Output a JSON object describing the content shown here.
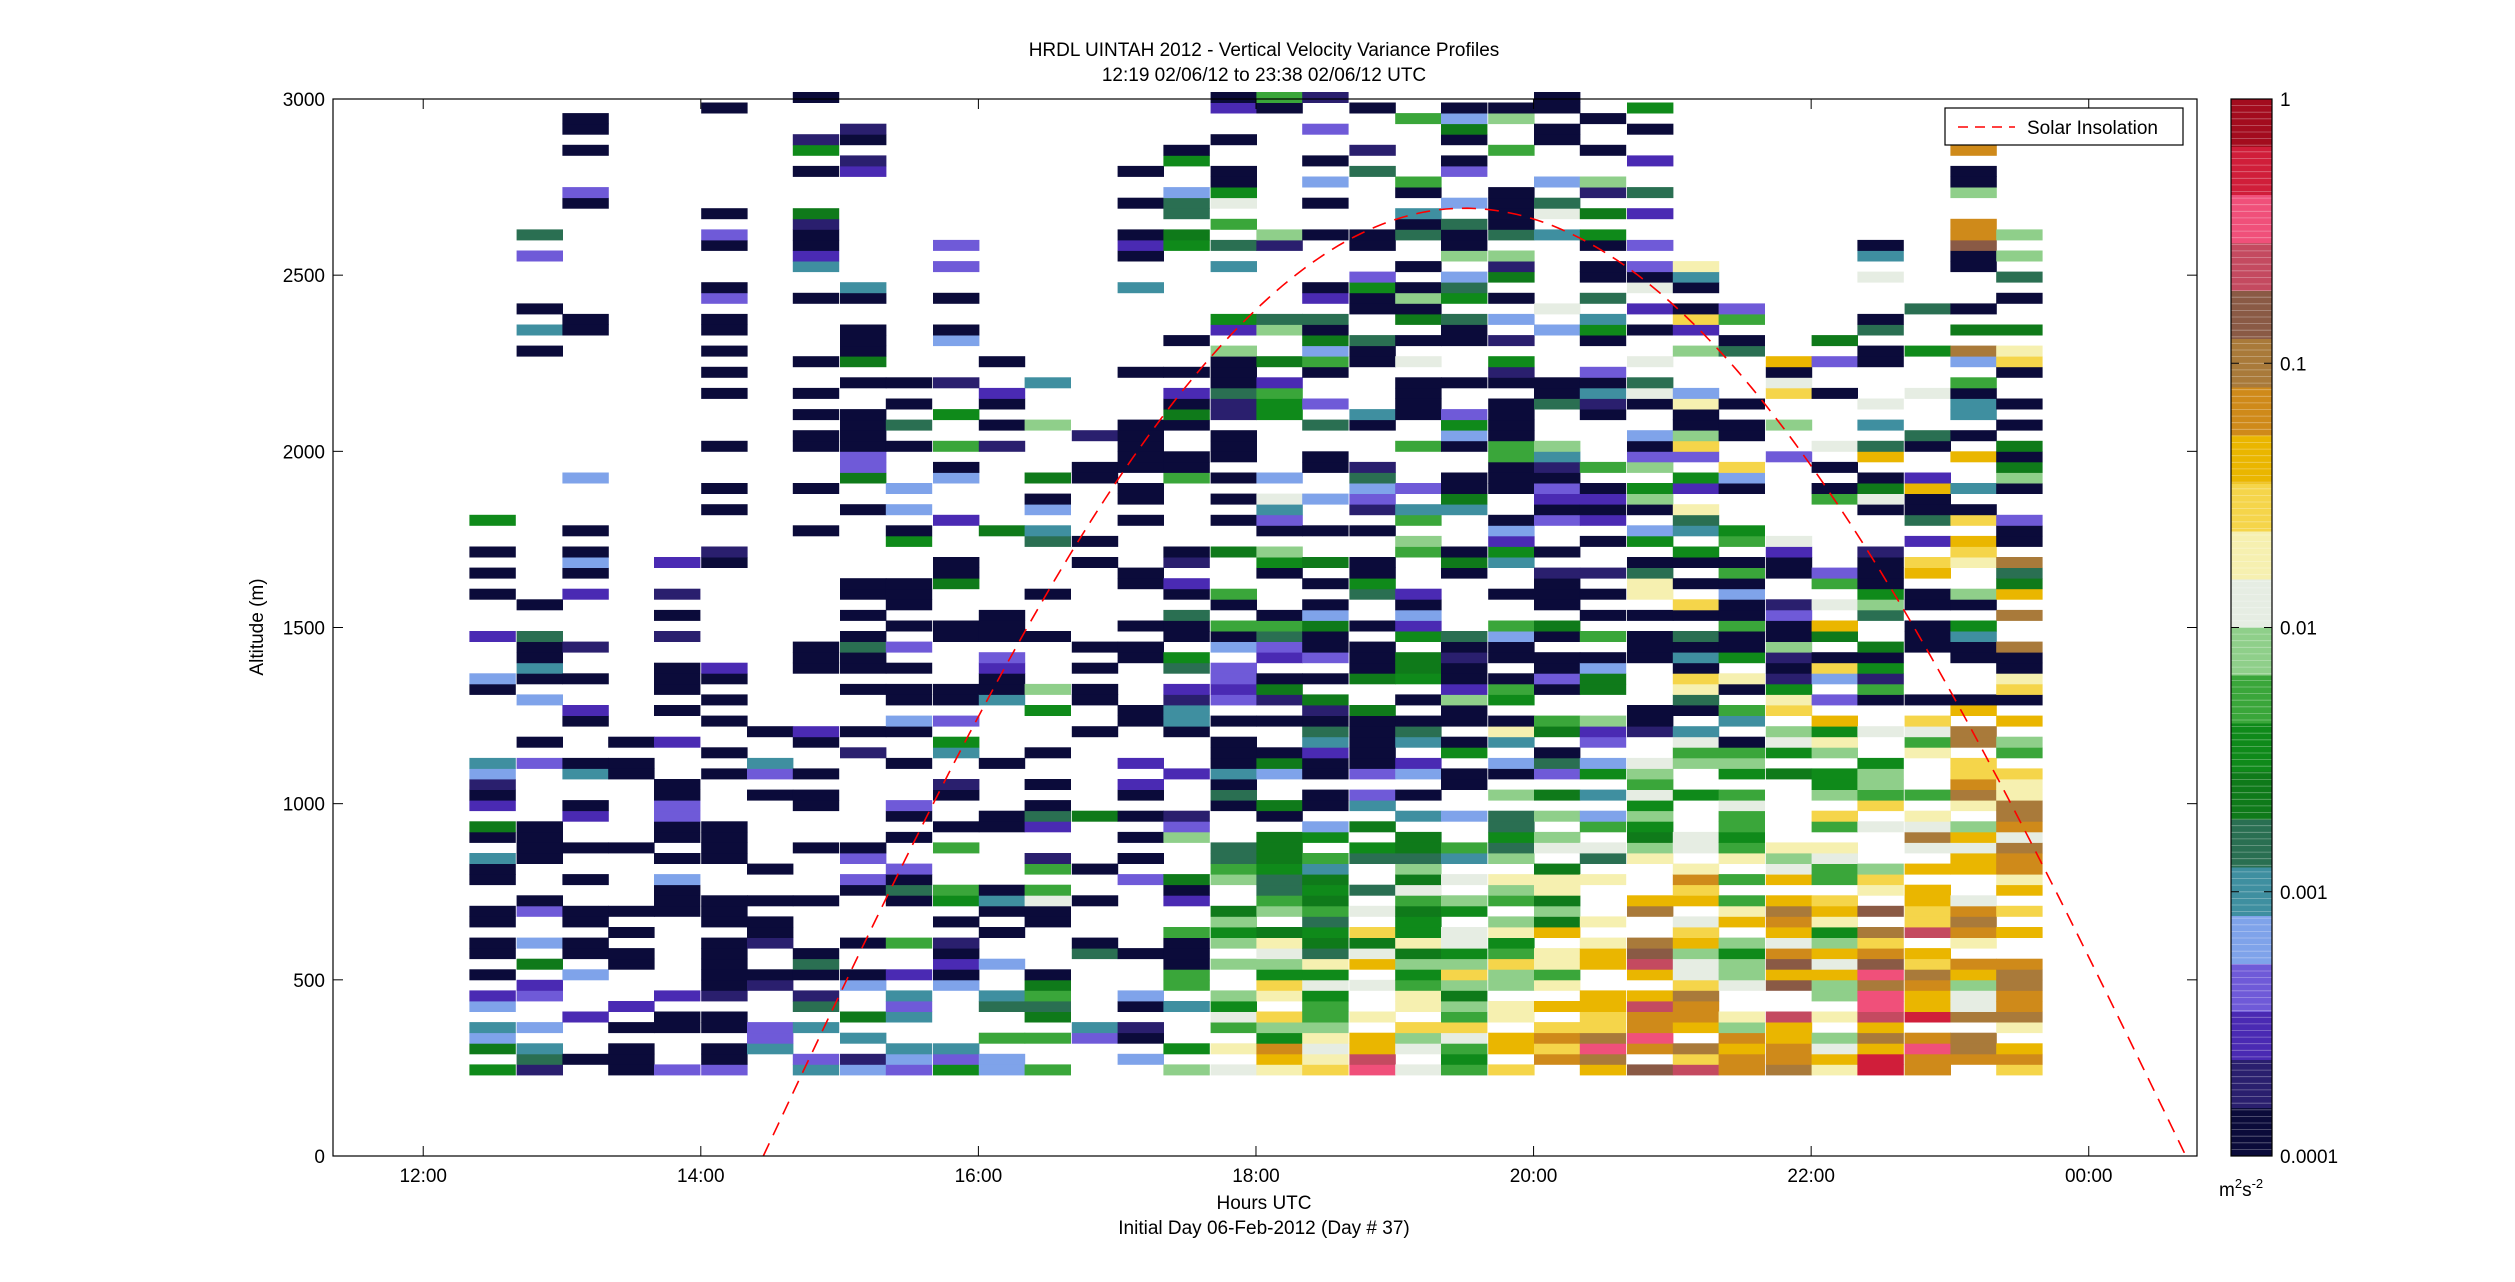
{
  "chart_data": {
    "type": "heatmap",
    "title": "HRDL UINTAH 2012 - Vertical Velocity Variance Profiles",
    "subtitle": "12:19 02/06/12 to 23:38 02/06/12  UTC",
    "xlabel": "Hours UTC",
    "xlabel2": "Initial Day 06-Feb-2012 (Day # 37)",
    "ylabel": "Altitude (m)",
    "xlim": [
      11.35,
      24.78
    ],
    "ylim": [
      0,
      3000
    ],
    "x_ticks": [
      12,
      14,
      16,
      18,
      20,
      22,
      24
    ],
    "x_tick_labels": [
      "12:00",
      "14:00",
      "16:00",
      "18:00",
      "20:00",
      "22:00",
      "00:00"
    ],
    "y_ticks": [
      0,
      500,
      1000,
      1500,
      2000,
      2500,
      3000
    ],
    "y_tick_labels": [
      "0",
      "500",
      "1000",
      "1500",
      "2000",
      "2500",
      "3000"
    ],
    "colorbar": {
      "scale": "log",
      "range": [
        0.0001,
        1
      ],
      "ticks": [
        0.0001,
        0.001,
        0.01,
        0.1,
        1
      ],
      "tick_labels": [
        "0.0001",
        "0.001",
        "0.01",
        "0.1",
        "1"
      ],
      "units_base": "m",
      "units_exp1": "2",
      "units_mid": "s",
      "units_exp2": "-2",
      "colors": [
        "#0b0b3a",
        "#2a1f6e",
        "#4a2ab3",
        "#6f5ad8",
        "#7fa3ea",
        "#3f8fa0",
        "#2a6f52",
        "#0f7a1a",
        "#0f8a1a",
        "#3aa63a",
        "#8fcf8a",
        "#e6ede3",
        "#f6f0b0",
        "#f5d54a",
        "#eab600",
        "#cf8a1a",
        "#a97a3a",
        "#8a5a45",
        "#c44a60",
        "#f0507a",
        "#d01e3a",
        "#a30c1e"
      ]
    },
    "legend": {
      "label": "Solar Insolation",
      "color": "#ff0000",
      "style": "dashed",
      "placement": "top-right"
    },
    "solar_insolation": {
      "peak_time_hours": 19.5,
      "peak_altitude_equiv_m": 2690,
      "zero_crossings_hours": [
        14.45,
        24.7
      ]
    },
    "time_profiles_hours": [
      12.5,
      12.84,
      13.17,
      13.5,
      13.83,
      14.17,
      14.5,
      14.83,
      15.17,
      15.5,
      15.84,
      16.17,
      16.5,
      16.84,
      17.17,
      17.5,
      17.84,
      18.17,
      18.5,
      18.84,
      19.17,
      19.5,
      19.84,
      20.17,
      20.5,
      20.84,
      21.17,
      21.5,
      21.84,
      22.17,
      22.5,
      22.84,
      23.17,
      23.5
    ],
    "profile_range_m": [
      230,
      3000
    ],
    "range_gate_m": 30,
    "profile_max_altitude_m": [
      1950,
      2620,
      2980,
      1210,
      1690,
      2990,
      1300,
      3000,
      3000,
      2450,
      2650,
      2300,
      2250,
      2050,
      2800,
      2870,
      3000,
      3000,
      3000,
      3000,
      3000,
      3000,
      3000,
      3000,
      3000,
      2970,
      2600,
      2550,
      2300,
      2320,
      2620,
      2400,
      2860,
      2640
    ],
    "profile_log10_mean_variance": [
      -3.2,
      -3.4,
      -3.8,
      -4.0,
      -3.9,
      -4.0,
      -3.6,
      -3.3,
      -3.3,
      -3.0,
      -3.0,
      -2.8,
      -2.6,
      -3.4,
      -3.6,
      -2.8,
      -2.5,
      -2.6,
      -3.0,
      -3.2,
      -2.6,
      -2.8,
      -2.5,
      -2.6,
      -2.9,
      -2.5,
      -2.2,
      -2.3,
      -2.2,
      -2.1,
      -2.1,
      -2.1,
      -1.6,
      -1.7
    ],
    "surface_log10_variance": [
      -3.0,
      -3.2,
      -3.6,
      -4.0,
      -3.6,
      -3.8,
      -3.2,
      -3.0,
      -3.2,
      -2.6,
      -2.8,
      -2.6,
      -2.4,
      -3.4,
      -3.8,
      -1.8,
      -1.6,
      -1.4,
      -1.3,
      -0.2,
      -1.5,
      -1.5,
      -1.4,
      -1.2,
      -0.3,
      -0.1,
      -0.9,
      -1.3,
      -0.4,
      -1.6,
      -0.3,
      -0.2,
      -1.3,
      -1.2
    ]
  }
}
